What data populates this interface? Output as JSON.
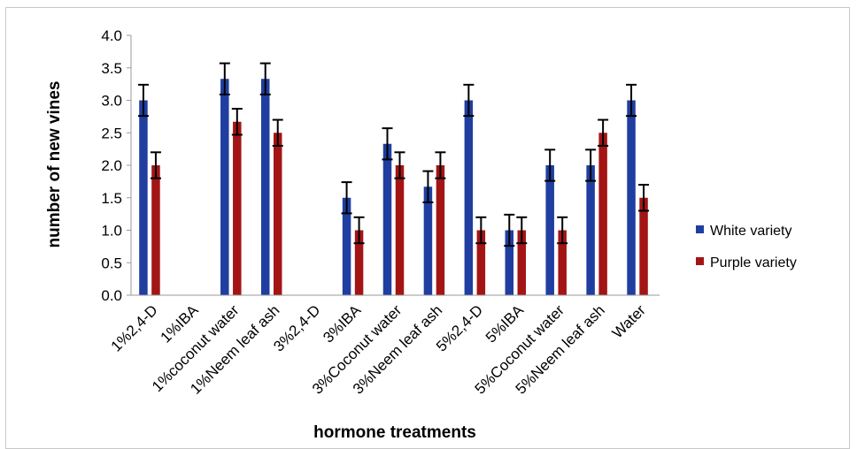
{
  "chart_data": {
    "type": "bar",
    "title": "",
    "xlabel": "hormone treatments",
    "ylabel": "number of new vines",
    "ylim": [
      0,
      4.0
    ],
    "yticks": [
      "0.0",
      "0.5",
      "1.0",
      "1.5",
      "2.0",
      "2.5",
      "3.0",
      "3.5",
      "4.0"
    ],
    "grid": false,
    "legend_position": "right",
    "categories": [
      "1%2,4-D",
      "1%IBA",
      "1%coconut water",
      "1%Neem leaf ash",
      "3%2,4-D",
      "3%IBA",
      "3%Coconut water",
      "3%Neem leaf ash",
      "5%2,4-D",
      "5%IBA",
      "5%Coconut water",
      "5%Neem leaf ash",
      "Water"
    ],
    "series": [
      {
        "name": "White variety",
        "color": "#1f3ea0",
        "values": [
          3.0,
          0,
          3.33,
          3.33,
          0,
          1.5,
          2.33,
          1.67,
          3.0,
          1.0,
          2.0,
          2.0,
          3.0
        ],
        "errors": [
          0.24,
          0,
          0.24,
          0.24,
          0,
          0.24,
          0.24,
          0.24,
          0.24,
          0.24,
          0.24,
          0.24,
          0.24
        ]
      },
      {
        "name": "Purple variety",
        "color": "#a31515",
        "values": [
          2.0,
          0,
          2.67,
          2.5,
          0,
          1.0,
          2.0,
          2.0,
          1.0,
          1.0,
          1.0,
          2.5,
          1.5
        ],
        "errors": [
          0.2,
          0,
          0.2,
          0.2,
          0,
          0.2,
          0.2,
          0.2,
          0.2,
          0.2,
          0.2,
          0.2,
          0.2
        ]
      }
    ]
  }
}
